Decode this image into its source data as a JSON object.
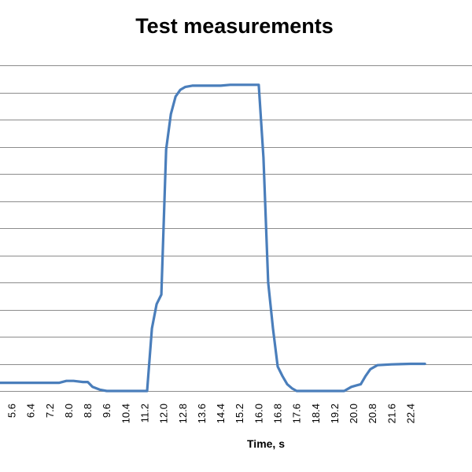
{
  "chart_data": {
    "type": "line",
    "title": "Test measurements",
    "xlabel": "Time, s",
    "ylabel": "",
    "x_ticks": [
      "5.6",
      "6.4",
      "7.2",
      "8.0",
      "8.8",
      "9.6",
      "10.4",
      "11.2",
      "12.0",
      "12.8",
      "13.6",
      "14.4",
      "15.2",
      "16.0",
      "16.8",
      "17.6",
      "18.4",
      "19.2",
      "20.0",
      "20.8",
      "21.6",
      "22.4"
    ],
    "xlim": [
      5.0,
      23.0
    ],
    "y_gridlines": 12,
    "grid": true,
    "legend": "none",
    "line_color": "#4a7ebb",
    "series": [
      {
        "x": [
          5.0,
          6.0,
          7.0,
          7.6,
          7.9,
          8.2,
          8.6,
          8.8,
          9.0,
          9.3,
          9.6,
          10.4,
          11.0,
          11.3,
          11.5,
          11.7,
          11.9,
          12.1,
          12.3,
          12.5,
          12.7,
          12.9,
          13.2,
          13.6,
          14.4,
          14.8,
          15.2,
          15.6,
          15.9,
          16.0,
          16.2,
          16.4,
          16.6,
          16.8,
          17.0,
          17.2,
          17.4,
          17.6,
          18.4,
          19.2,
          19.6,
          19.9,
          20.1,
          20.3,
          20.5,
          20.7,
          21.0,
          21.6,
          22.4,
          23.0
        ],
        "y": [
          0.3,
          0.3,
          0.3,
          0.3,
          0.37,
          0.37,
          0.33,
          0.33,
          0.15,
          0.05,
          0.0,
          0.0,
          0.0,
          0.0,
          2.3,
          3.2,
          3.55,
          8.9,
          10.2,
          10.85,
          11.1,
          11.2,
          11.25,
          11.25,
          11.25,
          11.28,
          11.28,
          11.28,
          11.28,
          11.28,
          8.6,
          4.0,
          2.3,
          0.9,
          0.55,
          0.25,
          0.1,
          0.0,
          0.0,
          0.0,
          0.0,
          0.15,
          0.2,
          0.25,
          0.55,
          0.8,
          0.95,
          0.98,
          1.0,
          1.0
        ]
      }
    ]
  }
}
